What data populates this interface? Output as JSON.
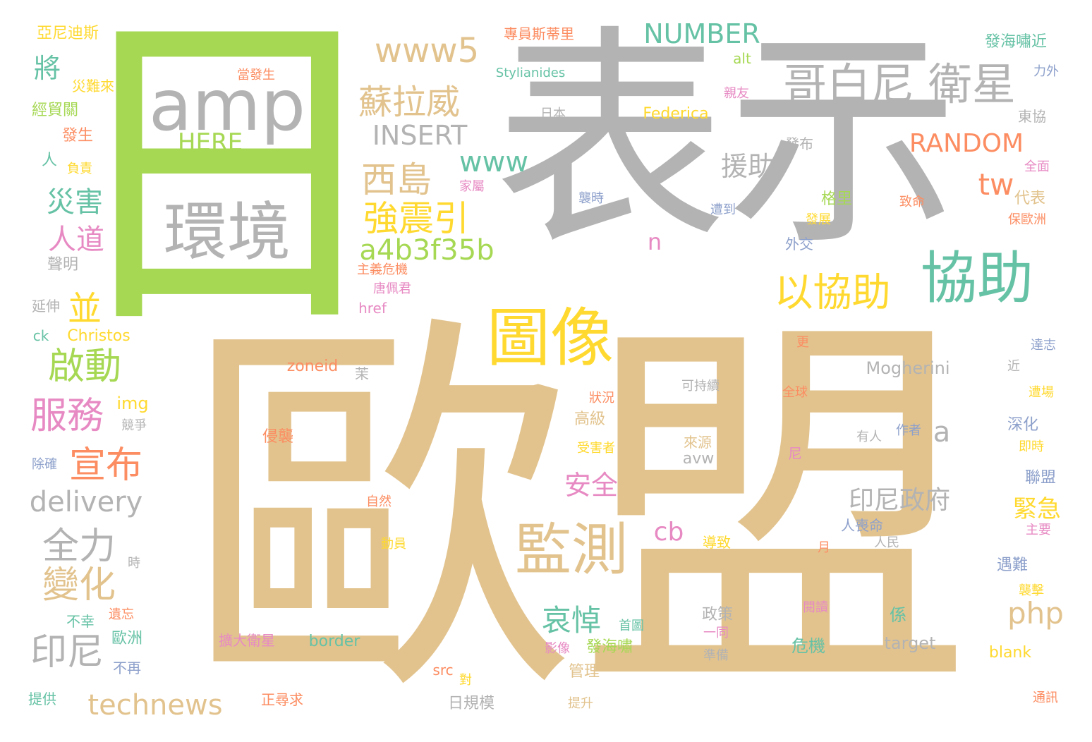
{
  "palette": {
    "tan": "#E2C38E",
    "gray": "#B3B3B3",
    "teal": "#66C2A5",
    "green": "#A6D854",
    "yellow": "#FFD92F",
    "orange": "#FC8D62",
    "pink": "#E78AC3",
    "blue": "#8DA0CB"
  },
  "words": [
    {
      "text": "歐盟",
      "color": "tan"
    },
    {
      "text": "表示",
      "color": "gray"
    },
    {
      "text": "日",
      "color": "green"
    },
    {
      "text": "amp",
      "color": "gray"
    },
    {
      "text": "環境",
      "color": "gray"
    },
    {
      "text": "協助",
      "color": "teal"
    },
    {
      "text": "哥白尼 衛星",
      "color": "gray"
    },
    {
      "text": "圖像",
      "color": "yellow"
    },
    {
      "text": "監測",
      "color": "tan"
    },
    {
      "text": "以協助",
      "color": "yellow"
    },
    {
      "text": "www5",
      "color": "tan"
    },
    {
      "text": "NUMBER",
      "color": "teal"
    },
    {
      "text": "蘇拉威",
      "color": "tan"
    },
    {
      "text": "西島",
      "color": "tan"
    },
    {
      "text": "強震引",
      "color": "yellow"
    },
    {
      "text": "a4b3f35b",
      "color": "green"
    },
    {
      "text": "INSERT",
      "color": "gray"
    },
    {
      "text": "www",
      "color": "teal"
    },
    {
      "text": "HERE",
      "color": "green"
    },
    {
      "text": "RANDOM",
      "color": "orange"
    },
    {
      "text": "援助",
      "color": "gray"
    },
    {
      "text": "tw",
      "color": "orange"
    },
    {
      "text": "將",
      "color": "teal"
    },
    {
      "text": "災害",
      "color": "teal"
    },
    {
      "text": "人道",
      "color": "pink"
    },
    {
      "text": "並",
      "color": "yellow"
    },
    {
      "text": "啟動",
      "color": "green"
    },
    {
      "text": "服務",
      "color": "pink"
    },
    {
      "text": "宣布",
      "color": "orange"
    },
    {
      "text": "delivery",
      "color": "gray"
    },
    {
      "text": "全力",
      "color": "gray"
    },
    {
      "text": "變化",
      "color": "tan"
    },
    {
      "text": "印尼",
      "color": "gray"
    },
    {
      "text": "technews",
      "color": "tan"
    },
    {
      "text": "哀悼",
      "color": "teal"
    },
    {
      "text": "安全",
      "color": "pink"
    },
    {
      "text": "cb",
      "color": "pink"
    },
    {
      "text": "php",
      "color": "tan"
    },
    {
      "text": "印尼政府",
      "color": "gray"
    },
    {
      "text": "緊急",
      "color": "yellow"
    },
    {
      "text": "Mogherini",
      "color": "gray"
    },
    {
      "text": "a",
      "color": "gray"
    },
    {
      "text": "n",
      "color": "pink"
    },
    {
      "text": "亞尼迪斯",
      "color": "yellow"
    },
    {
      "text": "災難來",
      "color": "yellow"
    },
    {
      "text": "經貿關",
      "color": "green"
    },
    {
      "text": "發生",
      "color": "orange"
    },
    {
      "text": "人",
      "color": "teal"
    },
    {
      "text": "負責",
      "color": "yellow"
    },
    {
      "text": "聲明",
      "color": "gray"
    },
    {
      "text": "延伸",
      "color": "gray"
    },
    {
      "text": "ck",
      "color": "teal"
    },
    {
      "text": "Christos",
      "color": "yellow"
    },
    {
      "text": "img",
      "color": "yellow"
    },
    {
      "text": "競爭",
      "color": "gray"
    },
    {
      "text": "除確",
      "color": "blue"
    },
    {
      "text": "時",
      "color": "gray"
    },
    {
      "text": "不幸",
      "color": "teal"
    },
    {
      "text": "遺忘",
      "color": "orange"
    },
    {
      "text": "歐洲",
      "color": "teal"
    },
    {
      "text": "不再",
      "color": "blue"
    },
    {
      "text": "提供",
      "color": "teal"
    },
    {
      "text": "當發生",
      "color": "orange"
    },
    {
      "text": "專員斯蒂里",
      "color": "orange"
    },
    {
      "text": "Stylianides",
      "color": "teal"
    },
    {
      "text": "alt",
      "color": "green"
    },
    {
      "text": "發海嘯近",
      "color": "teal"
    },
    {
      "text": "力外",
      "color": "blue"
    },
    {
      "text": "親友",
      "color": "pink"
    },
    {
      "text": "日本",
      "color": "gray"
    },
    {
      "text": "Federica",
      "color": "yellow"
    },
    {
      "text": "東協",
      "color": "gray"
    },
    {
      "text": "發布",
      "color": "gray"
    },
    {
      "text": "全面",
      "color": "pink"
    },
    {
      "text": "代表",
      "color": "tan"
    },
    {
      "text": "家屬",
      "color": "pink"
    },
    {
      "text": "襲時",
      "color": "blue"
    },
    {
      "text": "遭到",
      "color": "blue"
    },
    {
      "text": "格里",
      "color": "green"
    },
    {
      "text": "發展",
      "color": "yellow"
    },
    {
      "text": "致命",
      "color": "orange"
    },
    {
      "text": "保歐洲",
      "color": "orange"
    },
    {
      "text": "外交",
      "color": "blue"
    },
    {
      "text": "主義危機",
      "color": "orange"
    },
    {
      "text": "唐佩君",
      "color": "pink"
    },
    {
      "text": "href",
      "color": "pink"
    },
    {
      "text": "達志",
      "color": "blue"
    },
    {
      "text": "更",
      "color": "orange"
    },
    {
      "text": "近",
      "color": "gray"
    },
    {
      "text": "zoneid",
      "color": "orange"
    },
    {
      "text": "茉",
      "color": "gray"
    },
    {
      "text": "可持續",
      "color": "gray"
    },
    {
      "text": "全球",
      "color": "orange"
    },
    {
      "text": "遭場",
      "color": "yellow"
    },
    {
      "text": "狀況",
      "color": "orange"
    },
    {
      "text": "深化",
      "color": "blue"
    },
    {
      "text": "高級",
      "color": "tan"
    },
    {
      "text": "有人",
      "color": "gray"
    },
    {
      "text": "作者",
      "color": "blue"
    },
    {
      "text": "侵襲",
      "color": "orange"
    },
    {
      "text": "即時",
      "color": "yellow"
    },
    {
      "text": "受害者",
      "color": "yellow"
    },
    {
      "text": "來源",
      "color": "tan"
    },
    {
      "text": "avw",
      "color": "gray"
    },
    {
      "text": "尼",
      "color": "pink"
    },
    {
      "text": "聯盟",
      "color": "blue"
    },
    {
      "text": "自然",
      "color": "orange"
    },
    {
      "text": "人喪命",
      "color": "blue"
    },
    {
      "text": "主要",
      "color": "pink"
    },
    {
      "text": "動員",
      "color": "yellow"
    },
    {
      "text": "導致",
      "color": "yellow"
    },
    {
      "text": "月",
      "color": "orange"
    },
    {
      "text": "人民",
      "color": "gray"
    },
    {
      "text": "遇難",
      "color": "blue"
    },
    {
      "text": "襲擊",
      "color": "yellow"
    },
    {
      "text": "政策",
      "color": "gray"
    },
    {
      "text": "閱讀",
      "color": "pink"
    },
    {
      "text": "係",
      "color": "teal"
    },
    {
      "text": "一同",
      "color": "pink"
    },
    {
      "text": "首圖",
      "color": "teal"
    },
    {
      "text": "擴大衛星",
      "color": "pink"
    },
    {
      "text": "border",
      "color": "teal"
    },
    {
      "text": "影像",
      "color": "pink"
    },
    {
      "text": "發海嘯",
      "color": "green"
    },
    {
      "text": "危機",
      "color": "teal"
    },
    {
      "text": "target",
      "color": "gray"
    },
    {
      "text": "blank",
      "color": "yellow"
    },
    {
      "text": "準備",
      "color": "gray"
    },
    {
      "text": "管理",
      "color": "tan"
    },
    {
      "text": "src",
      "color": "orange"
    },
    {
      "text": "對",
      "color": "yellow"
    },
    {
      "text": "正尋求",
      "color": "orange"
    },
    {
      "text": "日規模",
      "color": "gray"
    },
    {
      "text": "提升",
      "color": "tan"
    },
    {
      "text": "通訊",
      "color": "orange"
    }
  ]
}
